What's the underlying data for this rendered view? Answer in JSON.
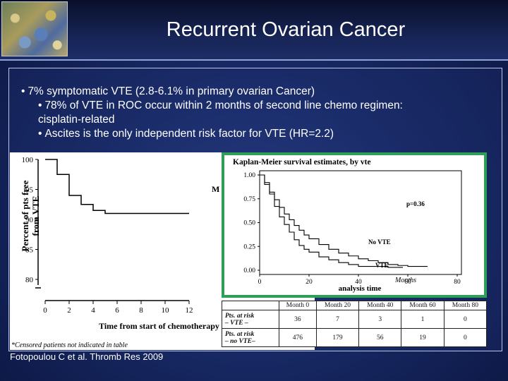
{
  "slide": {
    "title": "Recurrent Ovarian Cancer",
    "bullets": [
      {
        "text": "7% symptomatic VTE (2.8-6.1% in primary ovarian Cancer)"
      },
      {
        "text": "78% of VTE in ROC occur within 2 months of second line chemo regimen:",
        "continuation": "cisplatin-related"
      },
      {
        "text": "Ascites is the only independent risk factor for VTE (HR=2.2)"
      }
    ],
    "bullet_glyph": "•",
    "citation": "Fotopoulou C et al. Thromb Res 2009"
  },
  "chart_data": [
    {
      "type": "line",
      "ylabel": "Percent of pts free from VTE",
      "xlabel": "Time from start of chemotherapy (months)",
      "footnote": "*Censored patients not indicated in table",
      "partial_label": "M",
      "xticks": [
        0,
        2,
        4,
        6,
        8,
        10,
        12
      ],
      "yticks": [
        80,
        85,
        90,
        95,
        100
      ],
      "xlim": [
        0,
        12
      ],
      "ylim": [
        80,
        100
      ],
      "series": [
        {
          "x": [
            0,
            1,
            1,
            2,
            2,
            3,
            3,
            4,
            4,
            5,
            5,
            12
          ],
          "y": [
            100,
            100,
            97.5,
            97.5,
            94,
            94,
            92.5,
            92.5,
            91.5,
            91.5,
            91,
            91
          ]
        }
      ]
    },
    {
      "type": "line",
      "title": "Kaplan-Meier survival estimates, by vte",
      "xlabel": "analysis time",
      "x_unit_label": "Months",
      "pvalue_label": "p=0.36",
      "xticks": [
        0,
        20,
        40,
        60,
        80
      ],
      "yticks": [
        "0.00",
        "0.25",
        "0.50",
        "0.75",
        "1.00"
      ],
      "xlim": [
        0,
        80
      ],
      "ylim": [
        0,
        1
      ],
      "series": [
        {
          "name": "No VTE",
          "x": [
            0,
            2,
            4,
            6,
            8,
            10,
            12,
            14,
            16,
            18,
            20,
            24,
            28,
            32,
            36,
            40,
            44,
            48,
            52,
            56,
            60,
            64,
            68
          ],
          "y": [
            1.0,
            0.9,
            0.82,
            0.74,
            0.66,
            0.59,
            0.53,
            0.47,
            0.42,
            0.37,
            0.33,
            0.27,
            0.22,
            0.18,
            0.15,
            0.12,
            0.1,
            0.08,
            0.06,
            0.05,
            0.04,
            0.04,
            0.04
          ]
        },
        {
          "name": "VTE",
          "x": [
            0,
            2,
            4,
            6,
            8,
            10,
            12,
            14,
            16,
            18,
            20,
            24,
            28,
            32,
            36,
            40,
            46,
            52,
            58
          ],
          "y": [
            1.0,
            0.92,
            0.8,
            0.67,
            0.56,
            0.48,
            0.4,
            0.32,
            0.26,
            0.22,
            0.19,
            0.14,
            0.11,
            0.08,
            0.06,
            0.04,
            0.04,
            0.03,
            0.03
          ]
        }
      ]
    }
  ],
  "risk_table": {
    "headers": [
      "",
      "Month 0",
      "Month 20",
      "Month 40",
      "Month 60",
      "Month 80"
    ],
    "rows": [
      {
        "label_line1": "Pts. at risk",
        "label_line2": "– VTE –",
        "values": [
          "36",
          "7",
          "3",
          "1",
          "0"
        ]
      },
      {
        "label_line1": "Pts. at risk",
        "label_line2": "– no VTE–",
        "values": [
          "476",
          "179",
          "56",
          "19",
          "0"
        ]
      }
    ]
  }
}
